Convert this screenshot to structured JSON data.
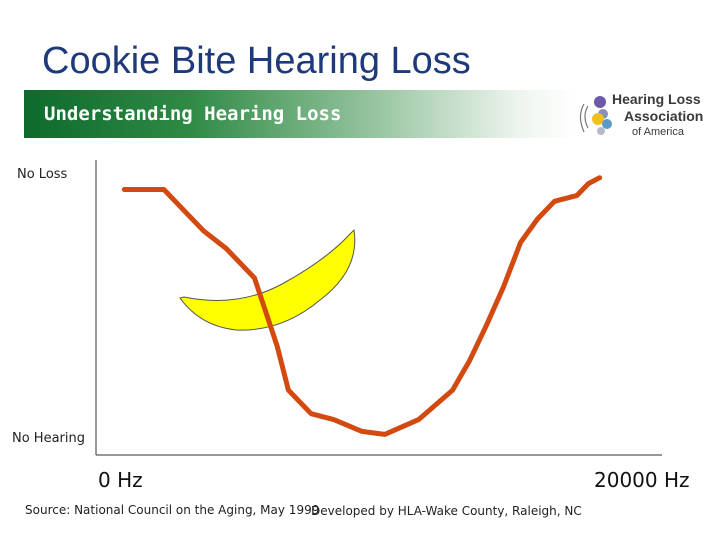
{
  "slide": {
    "title": "Cookie Bite Hearing Loss",
    "banner": "Understanding Hearing Loss"
  },
  "logo": {
    "line1": "Hearing Loss",
    "line2": "Association",
    "line3": "of America"
  },
  "footer": {
    "source": "Source: National Council on the Aging, May 1999",
    "credit": "Developed by HLA-Wake County, Raleigh, NC"
  },
  "colors": {
    "curve": "#d24a10",
    "banana": "#ffff00",
    "title": "#1f3a7a"
  },
  "chart_data": {
    "type": "line",
    "x_start_label": "0 Hz",
    "x_end_label": "20000 Hz",
    "y_top_label": "No Loss",
    "y_bottom_label": "No Hearing",
    "grid": false,
    "legend": "none",
    "series": [
      {
        "x": [
          0.05,
          0.12,
          0.19,
          0.23,
          0.28,
          0.32,
          0.34,
          0.38,
          0.42,
          0.47,
          0.51,
          0.57,
          0.63,
          0.66,
          0.69,
          0.72,
          0.75,
          0.78,
          0.81,
          0.85,
          0.87,
          0.89
        ],
        "y": [
          0.9,
          0.9,
          0.76,
          0.7,
          0.6,
          0.37,
          0.22,
          0.14,
          0.12,
          0.08,
          0.07,
          0.12,
          0.22,
          0.32,
          0.44,
          0.57,
          0.72,
          0.8,
          0.86,
          0.88,
          0.92,
          0.94
        ]
      }
    ]
  }
}
